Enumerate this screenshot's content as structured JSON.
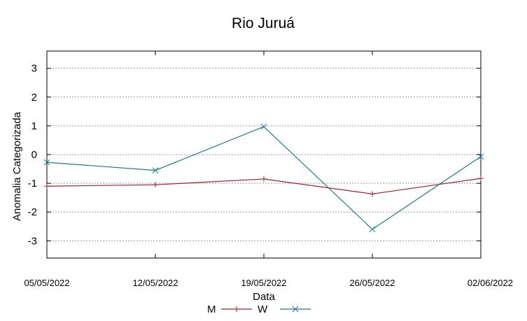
{
  "chart_data": {
    "type": "line",
    "title": "Rio Juruá",
    "xlabel": "Data",
    "ylabel": "Anomalia Categorizada",
    "categories": [
      "05/05/2022",
      "12/05/2022",
      "19/05/2022",
      "26/05/2022",
      "02/06/2022"
    ],
    "yticks": [
      "3",
      "2",
      "1",
      "0",
      "-1",
      "-2",
      "-3"
    ],
    "ylim": [
      -3.6,
      3.6
    ],
    "grid": true,
    "legend_position": "bottom",
    "series": [
      {
        "name": "M",
        "color": "#a0202a",
        "marker": "plus",
        "values": [
          -1.1,
          -1.05,
          -0.85,
          -1.37,
          -0.83
        ]
      },
      {
        "name": "W",
        "color": "#1f7a8c",
        "marker": "cross",
        "values": [
          -0.27,
          -0.55,
          0.97,
          -2.6,
          -0.07
        ]
      }
    ]
  }
}
